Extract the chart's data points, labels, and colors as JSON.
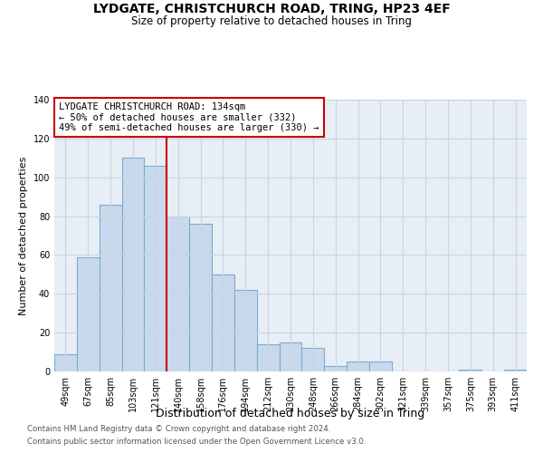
{
  "title": "LYDGATE, CHRISTCHURCH ROAD, TRING, HP23 4EF",
  "subtitle": "Size of property relative to detached houses in Tring",
  "xlabel": "Distribution of detached houses by size in Tring",
  "ylabel": "Number of detached properties",
  "bar_labels": [
    "49sqm",
    "67sqm",
    "85sqm",
    "103sqm",
    "121sqm",
    "140sqm",
    "158sqm",
    "176sqm",
    "194sqm",
    "212sqm",
    "230sqm",
    "248sqm",
    "266sqm",
    "284sqm",
    "302sqm",
    "321sqm",
    "339sqm",
    "357sqm",
    "375sqm",
    "393sqm",
    "411sqm"
  ],
  "bar_values": [
    9,
    59,
    86,
    110,
    106,
    80,
    76,
    50,
    42,
    14,
    15,
    12,
    3,
    5,
    5,
    0,
    0,
    0,
    1,
    0,
    1
  ],
  "bar_color": "#c9d9ed",
  "bar_edge_color": "#7aabcf",
  "vline_color": "#cc0000",
  "ylim": [
    0,
    140
  ],
  "yticks": [
    0,
    20,
    40,
    60,
    80,
    100,
    120,
    140
  ],
  "grid_color": "#c8d4e4",
  "background_color": "#e8eef5",
  "annotation_line1": "LYDGATE CHRISTCHURCH ROAD: 134sqm",
  "annotation_line2": "← 50% of detached houses are smaller (332)",
  "annotation_line3": "49% of semi-detached houses are larger (330) →",
  "footer1": "Contains HM Land Registry data © Crown copyright and database right 2024.",
  "footer2": "Contains public sector information licensed under the Open Government Licence v3.0."
}
